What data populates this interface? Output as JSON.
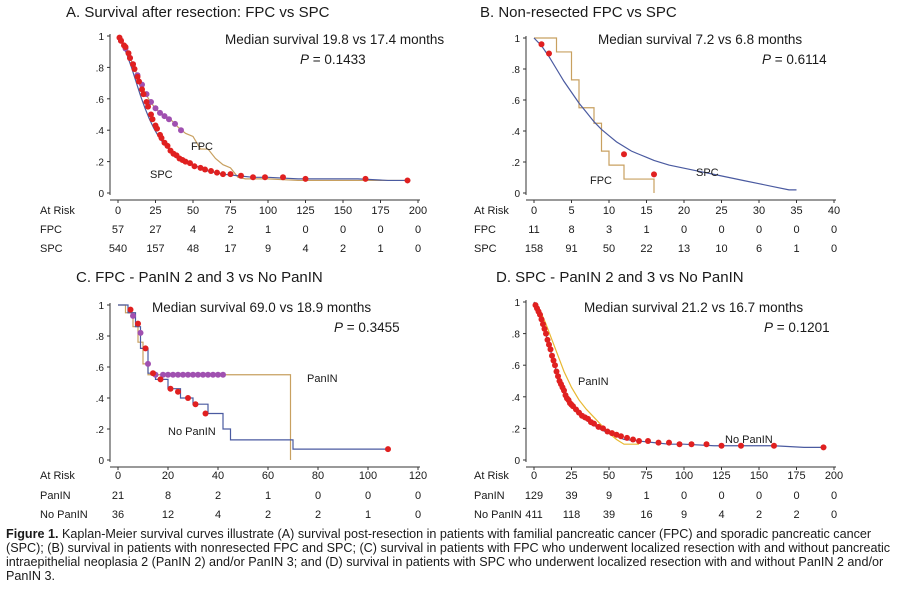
{
  "chart_data": [
    {
      "id": "A",
      "type": "line",
      "title": "A. Survival after resection: FPC vs SPC",
      "annotation_median": "Median survival 19.8 vs 17.4 months",
      "annotation_p_label": "P",
      "annotation_p_value": "= 0.1433",
      "xlim": [
        0,
        200
      ],
      "ylim": [
        0,
        1
      ],
      "yticks": [
        "0",
        ".2",
        ".4",
        ".6",
        ".8",
        "1"
      ],
      "xticks": [
        "0",
        "25",
        "50",
        "75",
        "100",
        "125",
        "150",
        "175",
        "200"
      ],
      "at_risk_label": "At Risk",
      "series": [
        {
          "name": "FPC",
          "color": "#c8a060",
          "x": [
            0,
            3,
            6,
            9,
            12,
            15,
            18,
            21,
            24,
            27,
            30,
            33,
            36,
            40,
            45,
            50,
            55,
            60,
            65,
            70,
            75,
            80,
            85,
            100,
            120,
            150,
            175,
            195
          ],
          "y": [
            1,
            0.96,
            0.9,
            0.84,
            0.77,
            0.7,
            0.64,
            0.59,
            0.55,
            0.52,
            0.5,
            0.48,
            0.46,
            0.42,
            0.38,
            0.36,
            0.28,
            0.28,
            0.22,
            0.18,
            0.16,
            0.1,
            0.09,
            0.09,
            0.08,
            0.08,
            0.08,
            0.08
          ],
          "markers_x": [
            2,
            5,
            8,
            10,
            13,
            16,
            19,
            22,
            25,
            28,
            31,
            34,
            38,
            42
          ],
          "markers_y": [
            0.97,
            0.92,
            0.86,
            0.82,
            0.75,
            0.69,
            0.63,
            0.58,
            0.54,
            0.51,
            0.49,
            0.47,
            0.44,
            0.4
          ],
          "marker_color": "#a050b0"
        },
        {
          "name": "SPC",
          "color": "#4a5aa0",
          "x": [
            0,
            3,
            6,
            9,
            12,
            15,
            18,
            21,
            24,
            27,
            30,
            35,
            40,
            45,
            50,
            55,
            60,
            70,
            80,
            90,
            100,
            120,
            140,
            160,
            180,
            195
          ],
          "y": [
            1,
            0.95,
            0.88,
            0.8,
            0.71,
            0.62,
            0.54,
            0.47,
            0.41,
            0.36,
            0.32,
            0.27,
            0.23,
            0.2,
            0.18,
            0.16,
            0.14,
            0.12,
            0.11,
            0.1,
            0.1,
            0.09,
            0.09,
            0.09,
            0.08,
            0.08
          ],
          "markers_x": [
            1,
            2,
            4,
            5,
            7,
            8,
            10,
            11,
            13,
            14,
            16,
            17,
            19,
            20,
            22,
            23,
            25,
            26,
            28,
            29,
            31,
            33,
            35,
            37,
            39,
            41,
            43,
            45,
            48,
            51,
            55,
            58,
            62,
            66,
            70,
            75,
            82,
            90,
            98,
            110,
            125,
            165,
            193
          ],
          "markers_y": [
            0.99,
            0.97,
            0.94,
            0.93,
            0.89,
            0.86,
            0.82,
            0.79,
            0.74,
            0.71,
            0.66,
            0.63,
            0.58,
            0.55,
            0.5,
            0.47,
            0.43,
            0.41,
            0.37,
            0.35,
            0.32,
            0.3,
            0.27,
            0.25,
            0.24,
            0.22,
            0.21,
            0.2,
            0.19,
            0.17,
            0.16,
            0.15,
            0.14,
            0.13,
            0.12,
            0.12,
            0.11,
            0.1,
            0.1,
            0.1,
            0.09,
            0.09,
            0.08
          ],
          "marker_color": "#e02020"
        }
      ],
      "at_risk": [
        {
          "label": "FPC",
          "values": [
            "57",
            "27",
            "4",
            "2",
            "1",
            "0",
            "0",
            "0",
            "0"
          ]
        },
        {
          "label": "SPC",
          "values": [
            "540",
            "157",
            "48",
            "17",
            "9",
            "4",
            "2",
            "1",
            "0"
          ]
        }
      ]
    },
    {
      "id": "B",
      "type": "line",
      "title": "B. Non-resected FPC vs SPC",
      "annotation_median": "Median survival 7.2 vs 6.8 months",
      "annotation_p_label": "P",
      "annotation_p_value": "= 0.6114",
      "xlim": [
        0,
        40
      ],
      "ylim": [
        0,
        1
      ],
      "yticks": [
        "0",
        ".2",
        ".4",
        ".6",
        ".8",
        "1"
      ],
      "xticks": [
        "0",
        "5",
        "10",
        "15",
        "20",
        "25",
        "30",
        "35",
        "40"
      ],
      "at_risk_label": "At Risk",
      "series": [
        {
          "name": "FPC",
          "color": "#c8a060",
          "x": [
            0,
            3,
            3,
            5,
            5,
            6,
            6,
            8,
            8,
            9,
            9,
            10,
            10,
            11,
            11,
            12,
            12,
            13,
            13,
            16,
            16
          ],
          "y": [
            1,
            1,
            0.91,
            0.91,
            0.73,
            0.73,
            0.55,
            0.55,
            0.45,
            0.45,
            0.27,
            0.27,
            0.18,
            0.18,
            0.18,
            0.18,
            0.09,
            0.09,
            0.09,
            0.09,
            0
          ],
          "markers_x": [],
          "markers_y": [],
          "marker_color": "#e02020"
        },
        {
          "name": "SPC",
          "color": "#4a5aa0",
          "x": [
            0,
            1,
            2,
            3,
            4,
            5,
            6,
            7,
            8,
            9,
            10,
            11,
            12,
            13,
            14,
            15,
            16,
            18,
            20,
            22,
            24,
            26,
            28,
            30,
            32,
            34,
            35
          ],
          "y": [
            1,
            0.95,
            0.88,
            0.8,
            0.72,
            0.65,
            0.58,
            0.52,
            0.46,
            0.41,
            0.37,
            0.33,
            0.3,
            0.27,
            0.25,
            0.23,
            0.21,
            0.18,
            0.16,
            0.14,
            0.12,
            0.1,
            0.08,
            0.06,
            0.04,
            0.02,
            0.02
          ],
          "markers_x": [
            1,
            2,
            12,
            16
          ],
          "markers_y": [
            0.96,
            0.9,
            0.25,
            0.12
          ],
          "marker_color": "#e02020"
        }
      ],
      "at_risk": [
        {
          "label": "FPC",
          "values": [
            "11",
            "8",
            "3",
            "1",
            "0",
            "0",
            "0",
            "0",
            "0"
          ]
        },
        {
          "label": "SPC",
          "values": [
            "158",
            "91",
            "50",
            "22",
            "13",
            "10",
            "6",
            "1",
            "0"
          ]
        }
      ]
    },
    {
      "id": "C",
      "type": "line",
      "title": "C. FPC - PanIN 2 and 3 vs No PanIN",
      "annotation_median": "Median survival 69.0 vs 18.9 months",
      "annotation_p_label": "P",
      "annotation_p_value": "= 0.3455",
      "xlim": [
        0,
        120
      ],
      "ylim": [
        0,
        1
      ],
      "yticks": [
        "0",
        ".2",
        ".4",
        ".6",
        ".8",
        "1"
      ],
      "xticks": [
        "0",
        "20",
        "40",
        "60",
        "80",
        "100",
        "120"
      ],
      "at_risk_label": "At Risk",
      "series": [
        {
          "name": "PanIN",
          "color": "#c8a060",
          "x": [
            0,
            3,
            3,
            6,
            6,
            8,
            8,
            10,
            10,
            12,
            12,
            18,
            18,
            69,
            69
          ],
          "y": [
            1,
            1,
            0.95,
            0.95,
            0.86,
            0.86,
            0.76,
            0.76,
            0.62,
            0.62,
            0.55,
            0.55,
            0.55,
            0.55,
            0
          ],
          "markers_x": [
            6,
            9,
            12,
            15,
            18,
            20,
            22,
            24,
            26,
            28,
            30,
            32,
            34,
            36,
            38,
            40,
            42
          ],
          "markers_y": [
            0.93,
            0.82,
            0.62,
            0.55,
            0.55,
            0.55,
            0.55,
            0.55,
            0.55,
            0.55,
            0.55,
            0.55,
            0.55,
            0.55,
            0.55,
            0.55,
            0.55
          ],
          "marker_color": "#a050b0"
        },
        {
          "name": "No PanIN",
          "color": "#4a5aa0",
          "x": [
            0,
            4,
            4,
            7,
            7,
            9,
            9,
            12,
            12,
            15,
            15,
            20,
            20,
            25,
            25,
            30,
            30,
            36,
            36,
            42,
            42,
            45,
            45,
            70,
            70,
            108
          ],
          "y": [
            1,
            1,
            0.95,
            0.95,
            0.86,
            0.86,
            0.72,
            0.72,
            0.56,
            0.56,
            0.52,
            0.52,
            0.46,
            0.46,
            0.4,
            0.4,
            0.36,
            0.36,
            0.3,
            0.3,
            0.2,
            0.2,
            0.13,
            0.13,
            0.07,
            0.07
          ],
          "markers_x": [
            5,
            8,
            11,
            14,
            17,
            21,
            24,
            28,
            31,
            35,
            108
          ],
          "markers_y": [
            0.97,
            0.88,
            0.72,
            0.56,
            0.52,
            0.46,
            0.44,
            0.4,
            0.36,
            0.3,
            0.07
          ],
          "marker_color": "#e02020"
        }
      ],
      "at_risk": [
        {
          "label": "PanIN",
          "values": [
            "21",
            "8",
            "2",
            "1",
            "0",
            "0",
            "0"
          ]
        },
        {
          "label": "No PanIN",
          "values": [
            "36",
            "12",
            "4",
            "2",
            "2",
            "1",
            "0"
          ]
        }
      ]
    },
    {
      "id": "D",
      "type": "line",
      "title": "D. SPC - PanIN 2 and 3 vs No PanIN",
      "annotation_median": "Median survival 21.2 vs 16.7 months",
      "annotation_p_label": "P",
      "annotation_p_value": "= 0.1201",
      "xlim": [
        0,
        200
      ],
      "ylim": [
        0,
        1
      ],
      "yticks": [
        "0",
        ".2",
        ".4",
        ".6",
        ".8",
        "1"
      ],
      "xticks": [
        "0",
        "25",
        "50",
        "75",
        "100",
        "125",
        "150",
        "175",
        "200"
      ],
      "at_risk_label": "At Risk",
      "series": [
        {
          "name": "PanIN",
          "color": "#e8b830",
          "x": [
            0,
            4,
            8,
            12,
            16,
            20,
            25,
            30,
            35,
            40,
            45,
            50,
            55,
            60,
            65,
            70
          ],
          "y": [
            1,
            0.95,
            0.86,
            0.76,
            0.66,
            0.56,
            0.46,
            0.38,
            0.32,
            0.27,
            0.22,
            0.17,
            0.13,
            0.1,
            0.1,
            0.1
          ],
          "markers_x": [],
          "markers_y": [],
          "marker_color": "#e02020"
        },
        {
          "name": "No PanIN",
          "color": "#4a5aa0",
          "x": [
            0,
            3,
            6,
            9,
            12,
            15,
            18,
            21,
            24,
            27,
            30,
            35,
            40,
            45,
            50,
            55,
            60,
            70,
            80,
            90,
            100,
            120,
            140,
            160,
            180,
            195
          ],
          "y": [
            1,
            0.94,
            0.86,
            0.76,
            0.66,
            0.56,
            0.48,
            0.41,
            0.36,
            0.32,
            0.29,
            0.25,
            0.22,
            0.19,
            0.17,
            0.15,
            0.13,
            0.12,
            0.11,
            0.1,
            0.1,
            0.09,
            0.09,
            0.09,
            0.08,
            0.08
          ],
          "markers_x": [
            1,
            2,
            3,
            4,
            5,
            6,
            7,
            8,
            9,
            10,
            11,
            12,
            13,
            14,
            15,
            16,
            17,
            18,
            19,
            20,
            21,
            22,
            23,
            24,
            25,
            26,
            28,
            30,
            32,
            34,
            36,
            38,
            40,
            43,
            46,
            49,
            52,
            55,
            58,
            62,
            66,
            70,
            76,
            83,
            90,
            97,
            105,
            115,
            125,
            138,
            160,
            193
          ],
          "markers_y": [
            0.98,
            0.96,
            0.94,
            0.92,
            0.89,
            0.86,
            0.83,
            0.8,
            0.76,
            0.73,
            0.7,
            0.66,
            0.63,
            0.6,
            0.56,
            0.53,
            0.5,
            0.48,
            0.46,
            0.44,
            0.41,
            0.39,
            0.38,
            0.36,
            0.35,
            0.34,
            0.32,
            0.3,
            0.28,
            0.27,
            0.26,
            0.24,
            0.23,
            0.21,
            0.2,
            0.18,
            0.17,
            0.16,
            0.15,
            0.14,
            0.13,
            0.12,
            0.12,
            0.11,
            0.11,
            0.1,
            0.1,
            0.1,
            0.09,
            0.09,
            0.09,
            0.08
          ],
          "marker_color": "#e02020"
        }
      ],
      "at_risk": [
        {
          "label": "PanIN",
          "values": [
            "129",
            "39",
            "9",
            "1",
            "0",
            "0",
            "0",
            "0",
            "0"
          ]
        },
        {
          "label": "No PanIN",
          "values": [
            "411",
            "118",
            "39",
            "16",
            "9",
            "4",
            "2",
            "2",
            "0"
          ]
        }
      ]
    }
  ],
  "caption": {
    "label": "Figure 1.",
    "text": " Kaplan-Meier survival curves illustrate (A) survival post-resection in patients with familial pancreatic cancer (FPC) and sporadic pancreatic cancer (SPC); (B) survival in patients with nonresected FPC and SPC; (C) survival in patients with FPC who underwent localized resection with and without pancreatic intraepithelial neoplasia 2 (PanIN 2) and/or PanIN 3; and (D) survival in patients with SPC who underwent localized resection with and without PanIN 2 and/or PanIN 3."
  }
}
